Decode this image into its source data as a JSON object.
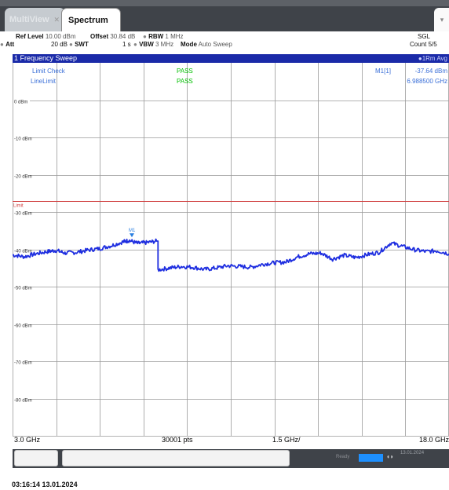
{
  "tabs": {
    "multiview": "MultiView",
    "spectrum": "Spectrum"
  },
  "params": {
    "ref_level_label": "Ref Level",
    "ref_level_value": "10.00 dBm",
    "offset_label": "Offset",
    "offset_value": "30.84 dB",
    "rbw_label": "RBW",
    "rbw_value": "1 MHz",
    "att_label": "Att",
    "att_value": "20 dB",
    "swt_label": "SWT",
    "swt_value": "1 s",
    "vbw_label": "VBW",
    "vbw_value": "3 MHz",
    "mode_label": "Mode",
    "mode_value": "Auto Sweep",
    "sgl": "SGL",
    "count": "Count 5/5"
  },
  "window": {
    "title": "1 Frequency Sweep",
    "trace_label": "1Rm Avg"
  },
  "limits": {
    "limit_check_label": "Limit Check",
    "limit_check_result": "PASS",
    "line_limit_label": "LineLimit",
    "line_limit_result": "PASS",
    "limit_line_label": "Limit",
    "pass_color": "#00c000",
    "limit_color": "#d04040"
  },
  "marker": {
    "name": "M1",
    "readout_label": "M1[1]",
    "readout_level": "-37.64 dBm",
    "readout_freq": "6.988500 GHz"
  },
  "footer": {
    "start": "3.0 GHz",
    "points": "30001 pts",
    "span_per_div": "1.5 GHz/",
    "stop": "18.0 GHz"
  },
  "status": {
    "ready": "Ready",
    "date_small": "13.01.2024"
  },
  "timestamp": "03:16:14  13.01.2024",
  "chart_data": {
    "type": "line",
    "title": "1 Frequency Sweep",
    "x_unit": "GHz",
    "xlim": [
      3.0,
      18.0
    ],
    "ylim": [
      -90,
      10
    ],
    "y_unit": "dBm",
    "grid": true,
    "y_ticks": [
      "0 dBm",
      "-10 dBm",
      "-20 dBm",
      "-30 dBm",
      "-40 dBm",
      "-50 dBm",
      "-60 dBm",
      "-70 dBm",
      "-80 dBm"
    ],
    "y_tick_values": [
      0,
      -10,
      -20,
      -30,
      -40,
      -50,
      -60,
      -70,
      -80
    ],
    "limit_line_dbm": -27,
    "trace_color": "#1e2ee0",
    "series": [
      {
        "x": [
          3.0,
          3.4,
          3.8,
          4.2,
          4.5,
          4.8,
          5.2,
          5.6,
          6.0,
          6.4,
          6.8,
          7.0,
          7.3,
          7.6,
          7.95,
          8.0,
          8.4,
          8.8,
          9.2,
          9.6,
          10.0,
          10.4,
          10.8,
          11.2,
          11.6,
          12.0,
          12.4,
          12.8,
          13.2,
          13.6,
          14.0,
          14.4,
          14.8,
          15.2,
          15.6,
          16.0,
          16.4,
          16.8,
          17.2,
          17.6,
          18.0
        ],
        "y": [
          -41.5,
          -42.0,
          -41.2,
          -40.6,
          -40.3,
          -41.0,
          -40.8,
          -40.2,
          -39.8,
          -39.0,
          -38.0,
          -37.6,
          -38.4,
          -38.2,
          -37.8,
          -45.5,
          -45.0,
          -44.6,
          -44.8,
          -45.4,
          -45.0,
          -44.4,
          -44.6,
          -44.8,
          -44.0,
          -43.6,
          -43.4,
          -42.0,
          -41.2,
          -41.0,
          -42.6,
          -41.6,
          -42.2,
          -41.4,
          -40.8,
          -38.3,
          -39.2,
          -40.1,
          -40.6,
          -40.4,
          -41.2
        ]
      }
    ]
  }
}
